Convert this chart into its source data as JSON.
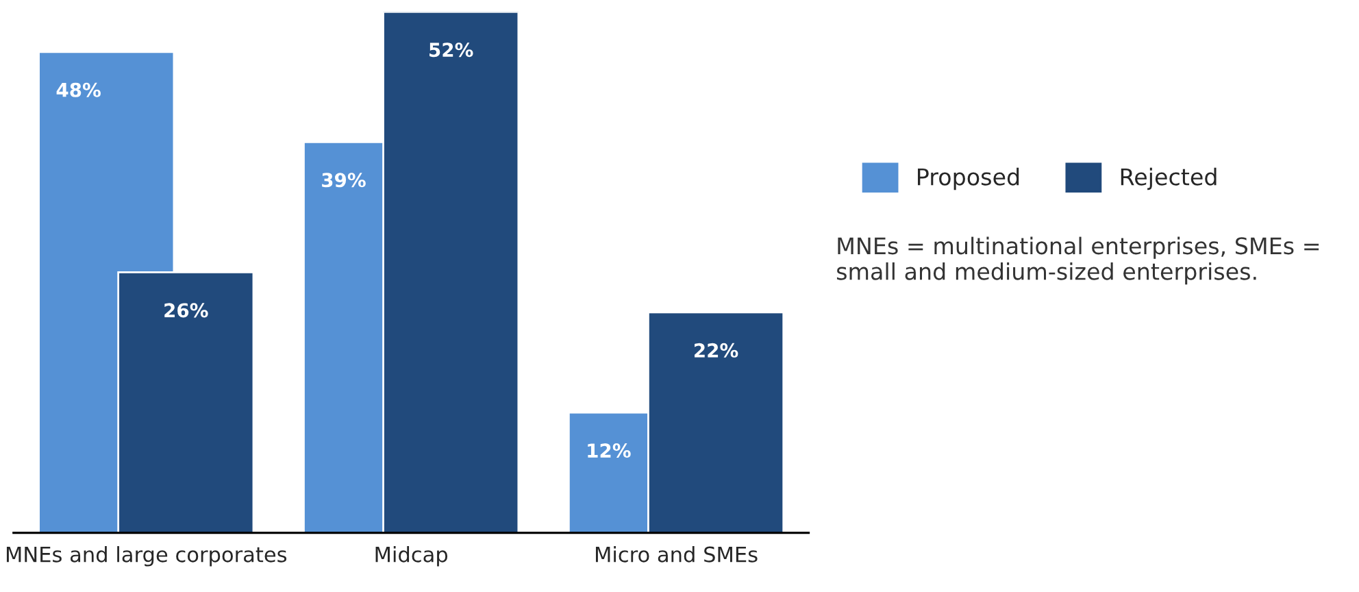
{
  "chart_data": {
    "type": "bar",
    "categories": [
      "MNEs and large corporates",
      "Midcap",
      "Micro and SMEs"
    ],
    "series": [
      {
        "name": "Proposed",
        "color": "#5591d5",
        "values": [
          48,
          39,
          12
        ],
        "value_labels": [
          "48%",
          "39%",
          "12%"
        ]
      },
      {
        "name": "Rejected",
        "color": "#214a7c",
        "values": [
          26,
          52,
          22
        ],
        "value_labels": [
          "26%",
          "52%",
          "22%"
        ]
      }
    ],
    "legend": "right",
    "grid": false,
    "annotations": [
      "MNEs = multinational enterprises, SMEs = small and medium-sized enterprises."
    ]
  }
}
